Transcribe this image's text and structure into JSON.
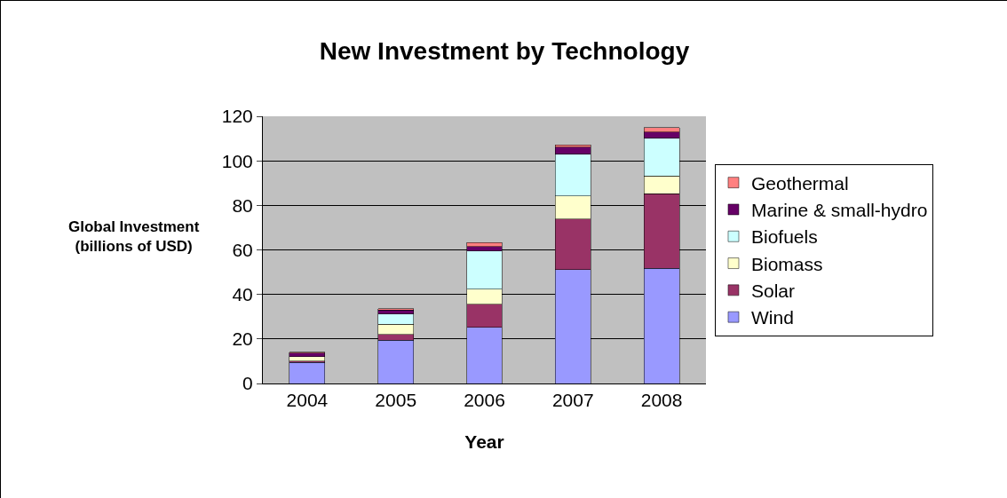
{
  "chart_data": {
    "type": "bar",
    "title": "New Investment by Technology",
    "xlabel": "Year",
    "ylabel": "Global Investment\n(billions of USD)",
    "categories": [
      "2004",
      "2005",
      "2006",
      "2007",
      "2008"
    ],
    "stacked": true,
    "ylim": [
      0,
      120
    ],
    "yticks": [
      0,
      20,
      40,
      60,
      80,
      100,
      120
    ],
    "grid": "y",
    "legend": "right",
    "series": [
      {
        "name": "Wind",
        "color": "#9999ff",
        "values": [
          9.5,
          19.4,
          25.3,
          51.1,
          51.8
        ]
      },
      {
        "name": "Solar",
        "color": "#993366",
        "values": [
          0.6,
          2.6,
          10.3,
          22.8,
          33.4
        ]
      },
      {
        "name": "Biomass",
        "color": "#ffffcc",
        "values": [
          2,
          4.7,
          6.8,
          10.4,
          8
        ]
      },
      {
        "name": "Biofuels",
        "color": "#ccffff",
        "values": [
          null,
          4.4,
          17.2,
          18.6,
          16.9
        ]
      },
      {
        "name": "Marine & small-hydro",
        "color": "#660066",
        "values": [
          1.5,
          1.9,
          1.8,
          3.3,
          2.9
        ]
      },
      {
        "name": "Geothermal",
        "color": "#ff8080",
        "values": [
          0.5,
          0.5,
          1.9,
          1,
          1.9
        ]
      }
    ]
  }
}
